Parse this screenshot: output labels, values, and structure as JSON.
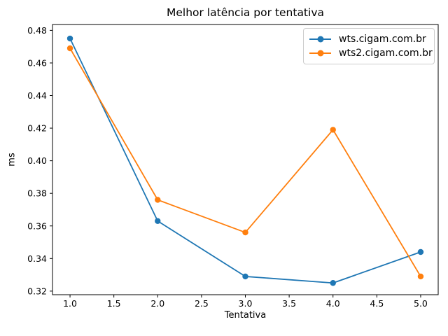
{
  "chart_data": {
    "type": "line",
    "title": "Melhor latência por tentativa",
    "xlabel": "Tentativa",
    "ylabel": "ms",
    "x": [
      1,
      2,
      3,
      4,
      5
    ],
    "series": [
      {
        "name": "wts.cigam.com.br",
        "color": "#1f77b4",
        "values": [
          0.475,
          0.363,
          0.329,
          0.325,
          0.344
        ]
      },
      {
        "name": "wts2.cigam.com.br",
        "color": "#ff7f0e",
        "values": [
          0.469,
          0.376,
          0.356,
          0.419,
          0.329
        ]
      }
    ],
    "xlim": [
      0.8,
      5.2
    ],
    "ylim": [
      0.3178,
      0.4836
    ],
    "xticks": [
      1.0,
      1.5,
      2.0,
      2.5,
      3.0,
      3.5,
      4.0,
      4.5,
      5.0
    ],
    "xtick_labels": [
      "1.0",
      "1.5",
      "2.0",
      "2.5",
      "3.0",
      "3.5",
      "4.0",
      "4.5",
      "5.0"
    ],
    "yticks": [
      0.32,
      0.34,
      0.36,
      0.38,
      0.4,
      0.42,
      0.44,
      0.46,
      0.48
    ],
    "ytick_labels": [
      "0.32",
      "0.34",
      "0.36",
      "0.38",
      "0.40",
      "0.42",
      "0.44",
      "0.46",
      "0.48"
    ],
    "grid": false,
    "legend_position": "upper right",
    "marker": "circle",
    "axis_color": "#000000",
    "background_color": "#ffffff"
  }
}
